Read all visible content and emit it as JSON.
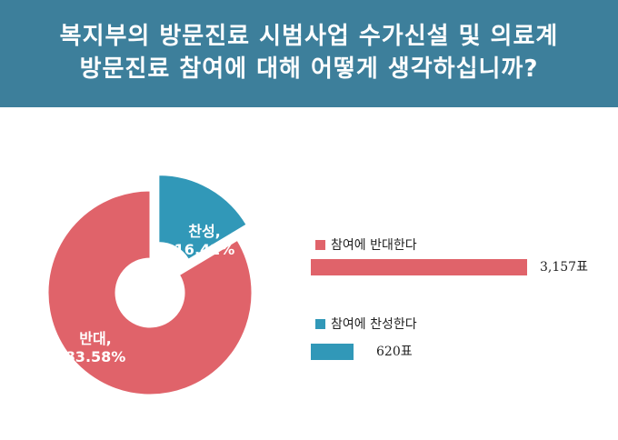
{
  "title": {
    "line1": "복지부의 방문진료 시범사업 수가신설 및 의료계",
    "line2": "방문진료 참여에 대해 어떻게 생각하십니까?"
  },
  "colors": {
    "header": "#3d7f9b",
    "oppose": "#e0636a",
    "support": "#3198b8"
  },
  "chart_data": [
    {
      "type": "pie",
      "slices": [
        {
          "name": "반대",
          "percent": 83.58,
          "label_name": "반대,",
          "label_value": "83.58%",
          "color": "#e0636a"
        },
        {
          "name": "찬성",
          "percent": 16.42,
          "label_name": "찬성,",
          "label_value": "16.42%",
          "color": "#3198b8"
        }
      ]
    },
    {
      "type": "bar",
      "orientation": "horizontal",
      "categories": [
        "참여에 반대한다",
        "참여에 찬성한다"
      ],
      "values": [
        3157,
        620
      ],
      "value_labels": [
        "3,157표",
        "620표"
      ],
      "colors": [
        "#e0636a",
        "#3198b8"
      ]
    }
  ]
}
